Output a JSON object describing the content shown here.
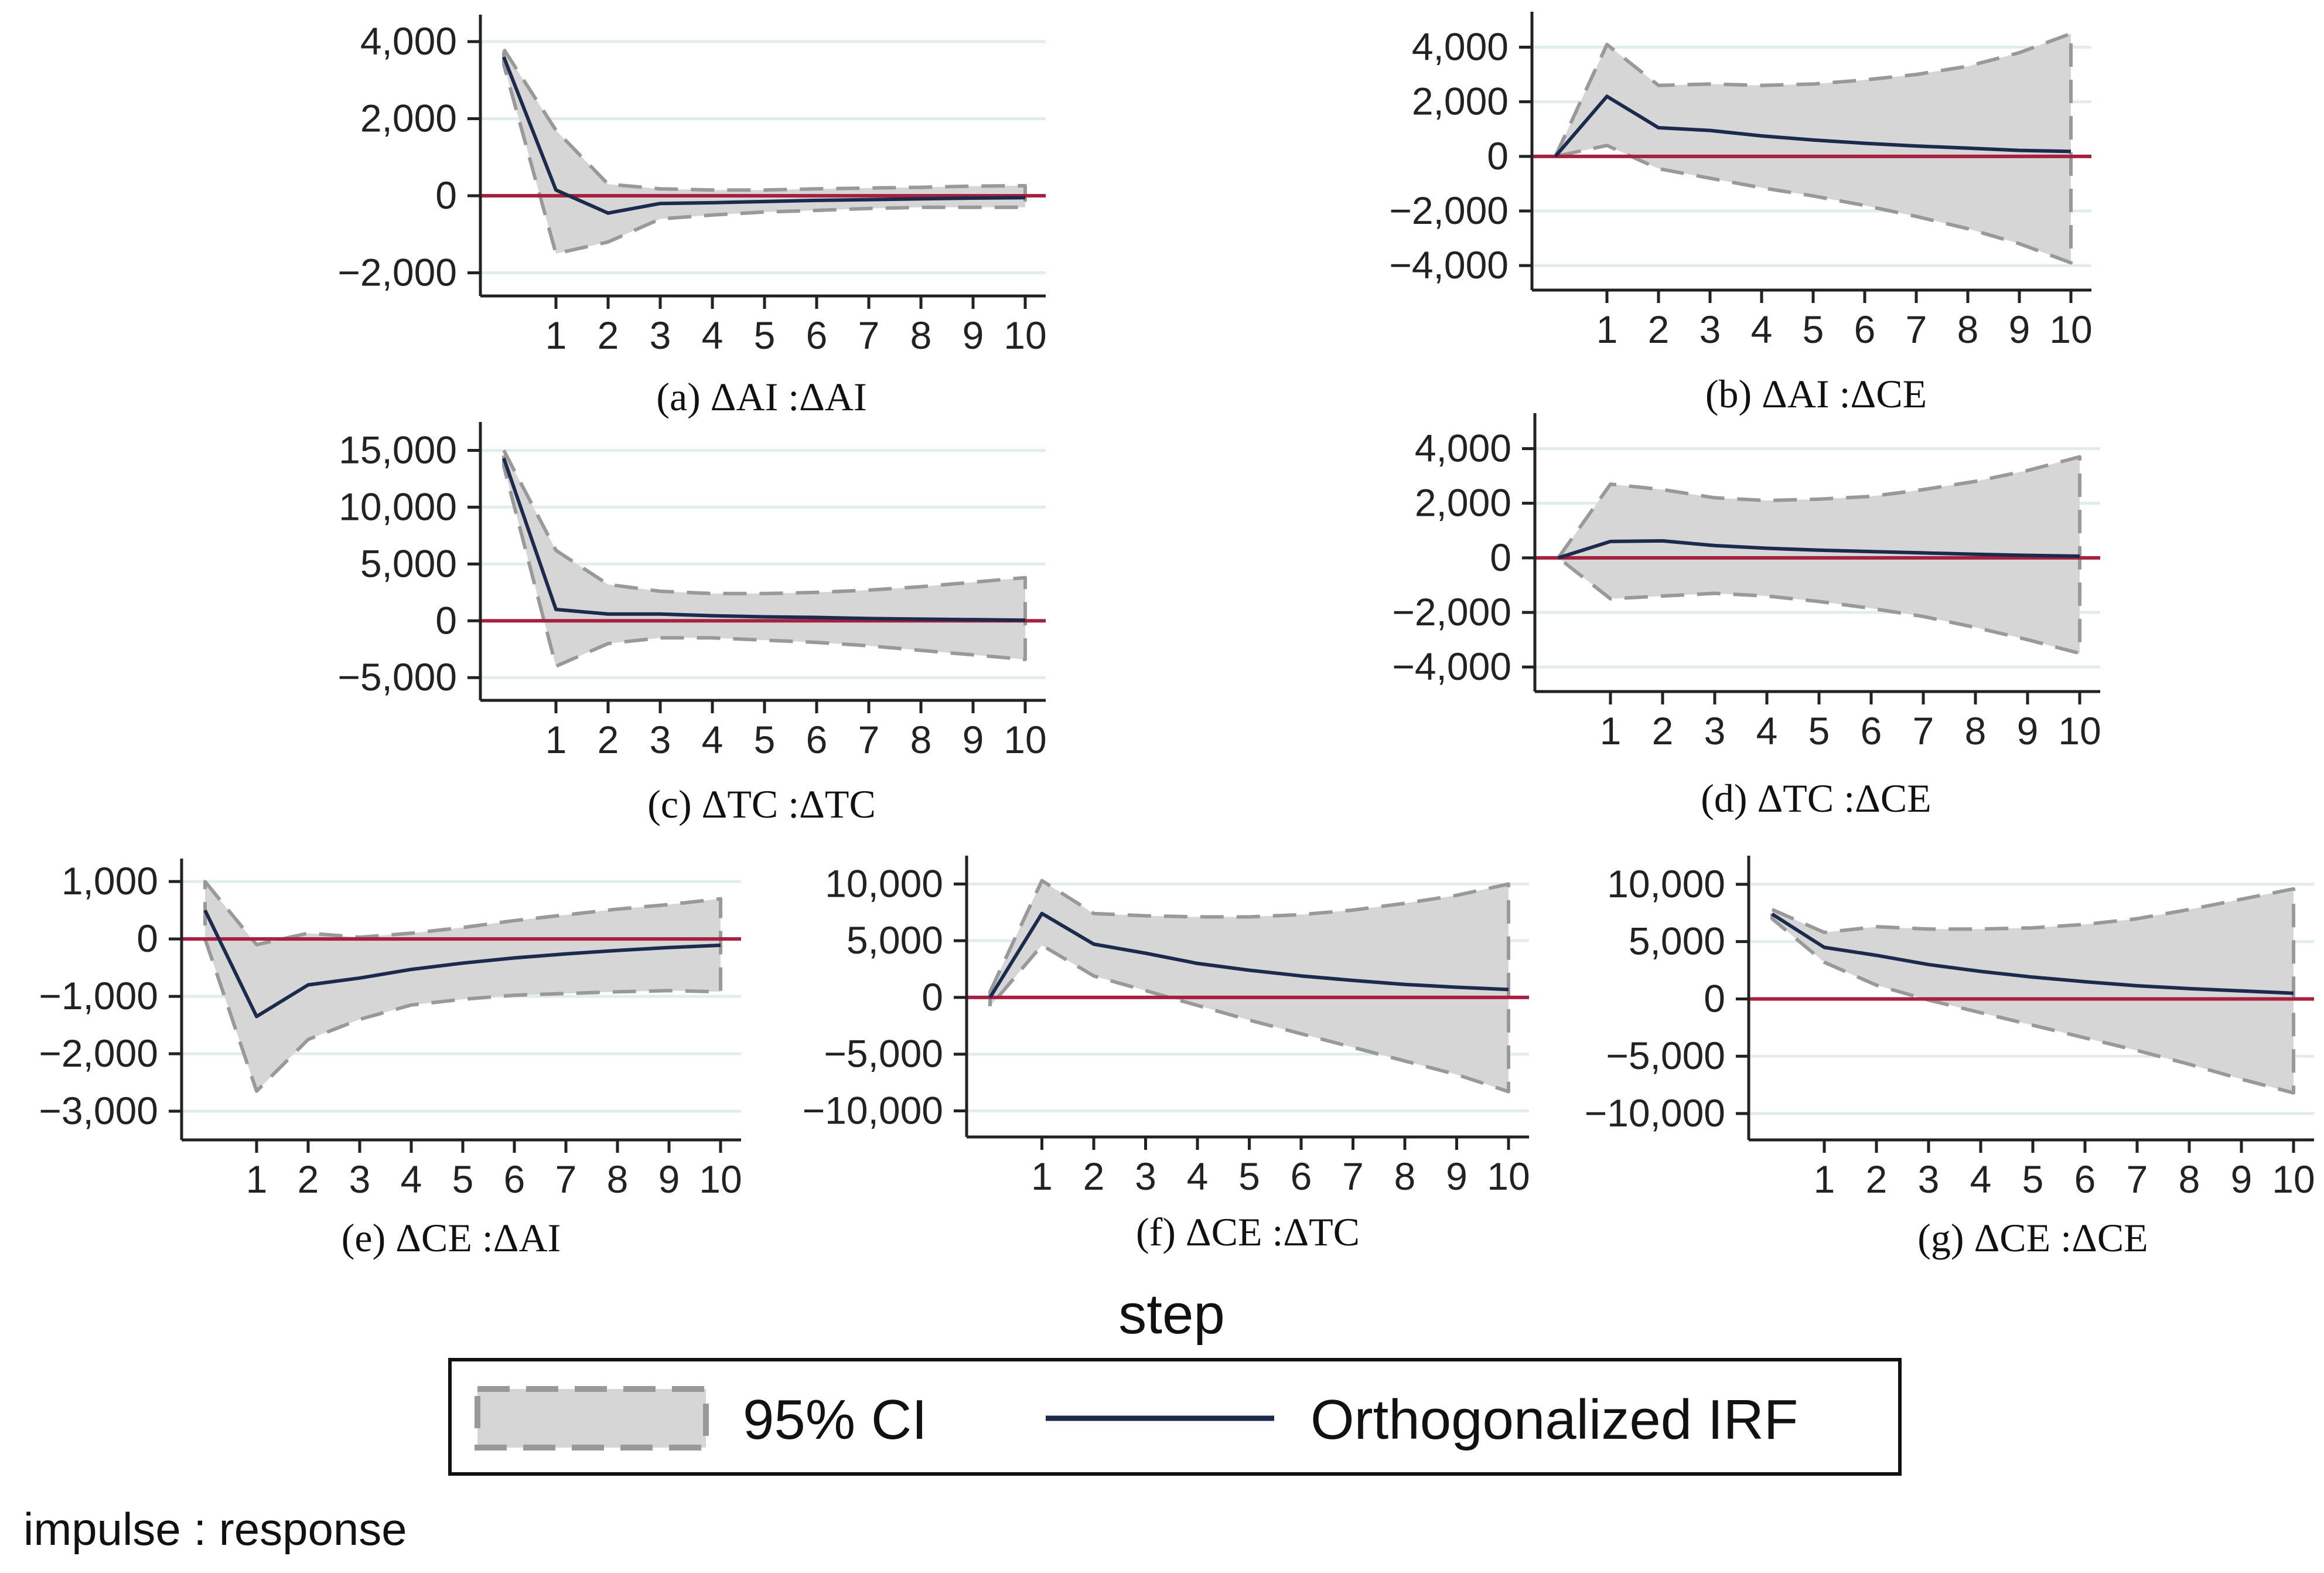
{
  "figure": {
    "x_title": "step",
    "note": "impulse : response",
    "legend": {
      "ci_label": "95% CI",
      "irf_label": "Orthogonalized IRF"
    },
    "colors": {
      "band_fill": "#d6d6d6",
      "band_edge": "#999999",
      "irf_line": "#1c2a4e",
      "zero_line": "#a8203f",
      "grid": "#e2ecee",
      "axis": "#222222"
    }
  },
  "chart_data": [
    {
      "type": "line",
      "title": "(a) ΔAI :ΔAI",
      "x": [
        0,
        1,
        2,
        3,
        4,
        5,
        6,
        7,
        8,
        9,
        10
      ],
      "xticks": [
        1,
        2,
        3,
        4,
        5,
        6,
        7,
        8,
        9,
        10
      ],
      "ylim": [
        -2600,
        4700
      ],
      "yticks": [
        -2000,
        0,
        2000,
        4000
      ],
      "yticklabels": [
        "−2,000",
        "0",
        "2,000",
        "4,000"
      ],
      "series": [
        {
          "name": "Orthogonalized IRF",
          "values": [
            3600,
            150,
            -450,
            -200,
            -180,
            -150,
            -120,
            -100,
            -80,
            -60,
            -50
          ]
        },
        {
          "name": "95% CI upper",
          "values": [
            3800,
            1700,
            300,
            180,
            150,
            150,
            180,
            200,
            220,
            250,
            260
          ]
        },
        {
          "name": "95% CI lower",
          "values": [
            3400,
            -1500,
            -1200,
            -600,
            -500,
            -420,
            -380,
            -330,
            -300,
            -300,
            -300
          ]
        }
      ]
    },
    {
      "type": "line",
      "title": "(b) ΔAI :ΔCE",
      "x": [
        0,
        1,
        2,
        3,
        4,
        5,
        6,
        7,
        8,
        9,
        10
      ],
      "xticks": [
        1,
        2,
        3,
        4,
        5,
        6,
        7,
        8,
        9,
        10
      ],
      "ylim": [
        -4900,
        5300
      ],
      "yticks": [
        -4000,
        -2000,
        0,
        2000,
        4000
      ],
      "yticklabels": [
        "−4,000",
        "−2,000",
        "0",
        "2,000",
        "4,000"
      ],
      "series": [
        {
          "name": "Orthogonalized IRF",
          "values": [
            0,
            2200,
            1050,
            950,
            750,
            600,
            480,
            380,
            300,
            220,
            180
          ]
        },
        {
          "name": "95% CI upper",
          "values": [
            0,
            4100,
            2600,
            2650,
            2600,
            2650,
            2800,
            3000,
            3300,
            3800,
            4500
          ]
        },
        {
          "name": "95% CI lower",
          "values": [
            0,
            400,
            -450,
            -800,
            -1150,
            -1450,
            -1800,
            -2200,
            -2650,
            -3200,
            -3900
          ]
        }
      ]
    },
    {
      "type": "line",
      "title": "(c) ΔTC :ΔTC",
      "x": [
        0,
        1,
        2,
        3,
        4,
        5,
        6,
        7,
        8,
        9,
        10
      ],
      "xticks": [
        1,
        2,
        3,
        4,
        5,
        6,
        7,
        8,
        9,
        10
      ],
      "ylim": [
        -7000,
        17500
      ],
      "yticks": [
        -5000,
        0,
        5000,
        10000,
        15000
      ],
      "yticklabels": [
        "−5,000",
        "0",
        "5,000",
        "10,000",
        "15,000"
      ],
      "series": [
        {
          "name": "Orthogonalized IRF",
          "values": [
            14300,
            1000,
            600,
            600,
            450,
            350,
            300,
            200,
            150,
            100,
            50
          ]
        },
        {
          "name": "95% CI upper",
          "values": [
            15000,
            6200,
            3200,
            2600,
            2400,
            2400,
            2500,
            2700,
            3000,
            3400,
            3800
          ]
        },
        {
          "name": "95% CI lower",
          "values": [
            13600,
            -4000,
            -2000,
            -1500,
            -1500,
            -1700,
            -1900,
            -2200,
            -2600,
            -3000,
            -3400
          ]
        }
      ]
    },
    {
      "type": "line",
      "title": "(d) ΔTC :ΔCE",
      "x": [
        0,
        1,
        2,
        3,
        4,
        5,
        6,
        7,
        8,
        9,
        10
      ],
      "xticks": [
        1,
        2,
        3,
        4,
        5,
        6,
        7,
        8,
        9,
        10
      ],
      "ylim": [
        -4900,
        5300
      ],
      "yticks": [
        -4000,
        -2000,
        0,
        2000,
        4000
      ],
      "yticklabels": [
        "−4,000",
        "−2,000",
        "0",
        "2,000",
        "4,000"
      ],
      "series": [
        {
          "name": "Orthogonalized IRF",
          "values": [
            0,
            600,
            620,
            450,
            350,
            280,
            230,
            180,
            130,
            90,
            60
          ]
        },
        {
          "name": "95% CI upper",
          "values": [
            0,
            2700,
            2500,
            2200,
            2100,
            2150,
            2250,
            2500,
            2800,
            3200,
            3700
          ]
        },
        {
          "name": "95% CI lower",
          "values": [
            0,
            -1500,
            -1400,
            -1300,
            -1400,
            -1600,
            -1850,
            -2150,
            -2550,
            -3000,
            -3500
          ]
        }
      ]
    },
    {
      "type": "line",
      "title": "(e) ΔCE :ΔAI",
      "x": [
        0,
        1,
        2,
        3,
        4,
        5,
        6,
        7,
        8,
        9,
        10
      ],
      "xticks": [
        1,
        2,
        3,
        4,
        5,
        6,
        7,
        8,
        9,
        10
      ],
      "ylim": [
        -3500,
        1400
      ],
      "yticks": [
        -3000,
        -2000,
        -1000,
        0,
        1000
      ],
      "yticklabels": [
        "−3,000",
        "−2,000",
        "−1,000",
        "0",
        "1,000"
      ],
      "series": [
        {
          "name": "Orthogonalized IRF",
          "values": [
            500,
            -1350,
            -800,
            -680,
            -530,
            -420,
            -330,
            -260,
            -200,
            -150,
            -110
          ]
        },
        {
          "name": "95% CI upper",
          "values": [
            1000,
            -100,
            100,
            30,
            100,
            200,
            320,
            420,
            520,
            600,
            700
          ]
        },
        {
          "name": "95% CI lower",
          "values": [
            0,
            -2650,
            -1750,
            -1400,
            -1150,
            -1050,
            -980,
            -950,
            -920,
            -900,
            -920
          ]
        }
      ]
    },
    {
      "type": "line",
      "title": "(f) ΔCE :ΔTC",
      "x": [
        0,
        1,
        2,
        3,
        4,
        5,
        6,
        7,
        8,
        9,
        10
      ],
      "xticks": [
        1,
        2,
        3,
        4,
        5,
        6,
        7,
        8,
        9,
        10
      ],
      "ylim": [
        -12300,
        12500
      ],
      "yticks": [
        -10000,
        -5000,
        0,
        5000,
        10000
      ],
      "yticklabels": [
        "−10,000",
        "−5,000",
        "0",
        "5,000",
        "10,000"
      ],
      "series": [
        {
          "name": "Orthogonalized IRF",
          "values": [
            0,
            7400,
            4700,
            3900,
            3000,
            2400,
            1900,
            1500,
            1150,
            900,
            700
          ]
        },
        {
          "name": "95% CI upper",
          "values": [
            500,
            10300,
            7400,
            7200,
            7100,
            7100,
            7300,
            7700,
            8300,
            9000,
            10000
          ]
        },
        {
          "name": "95% CI lower",
          "values": [
            -800,
            4600,
            1900,
            600,
            -700,
            -2000,
            -3200,
            -4400,
            -5600,
            -6800,
            -8300
          ]
        }
      ]
    },
    {
      "type": "line",
      "title": "(g) ΔCE :ΔCE",
      "x": [
        0,
        1,
        2,
        3,
        4,
        5,
        6,
        7,
        8,
        9,
        10
      ],
      "xticks": [
        1,
        2,
        3,
        4,
        5,
        6,
        7,
        8,
        9,
        10
      ],
      "ylim": [
        -12300,
        12500
      ],
      "yticks": [
        -10000,
        -5000,
        0,
        5000,
        10000
      ],
      "yticklabels": [
        "−10,000",
        "−5,000",
        "0",
        "5,000",
        "10,000"
      ],
      "series": [
        {
          "name": "Orthogonalized IRF",
          "values": [
            7400,
            4500,
            3800,
            3000,
            2400,
            1900,
            1500,
            1150,
            900,
            700,
            500
          ]
        },
        {
          "name": "95% CI upper",
          "values": [
            7800,
            5800,
            6300,
            6100,
            6100,
            6200,
            6500,
            7000,
            7800,
            8700,
            9600
          ]
        },
        {
          "name": "95% CI lower",
          "values": [
            7000,
            3200,
            1200,
            -100,
            -1200,
            -2300,
            -3400,
            -4500,
            -5700,
            -7000,
            -8200
          ]
        }
      ]
    }
  ]
}
